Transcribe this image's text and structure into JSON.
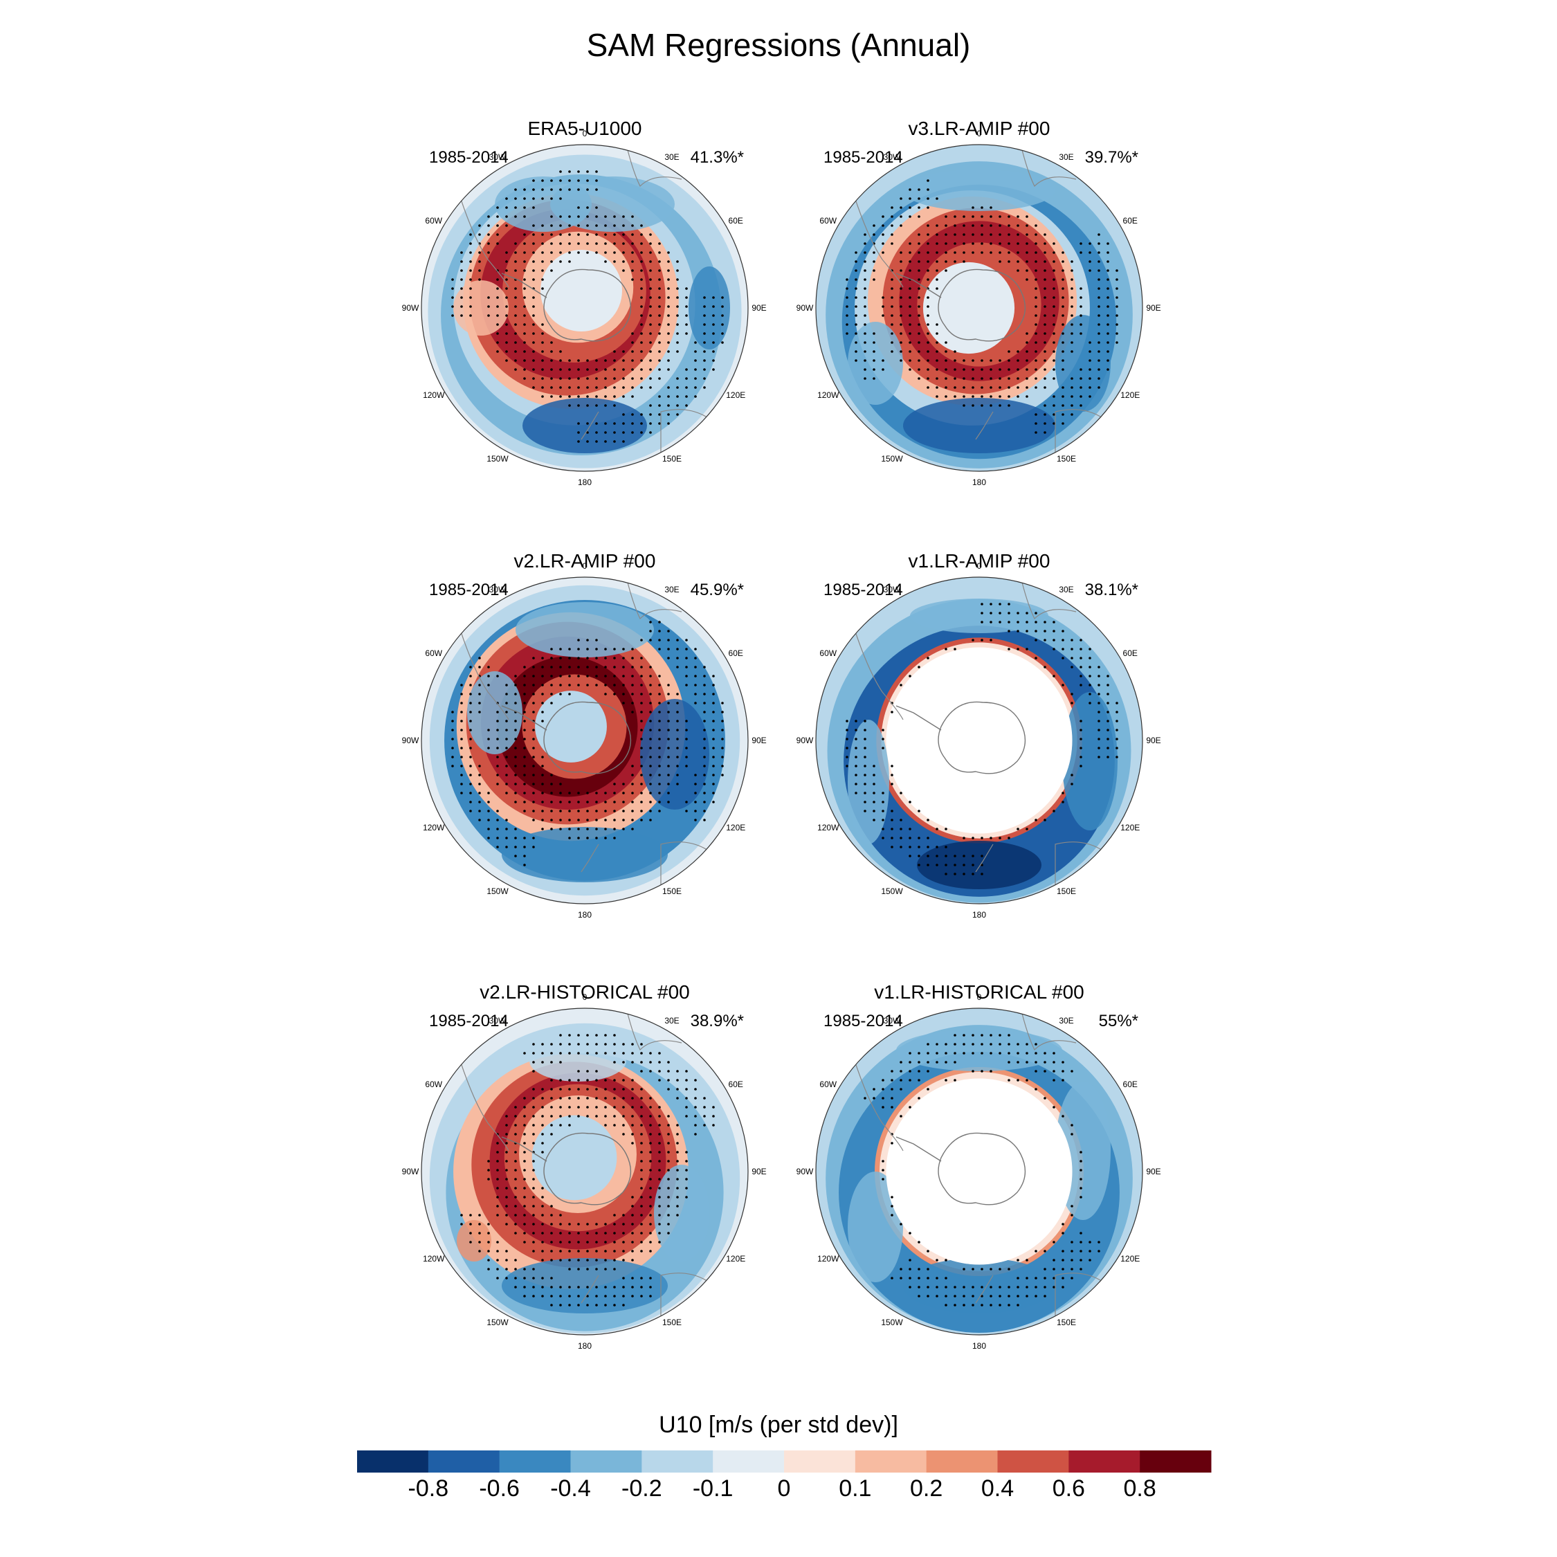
{
  "title": "SAM Regressions (Annual)",
  "panels": [
    {
      "title": "ERA5-U1000",
      "years": "1985-2014",
      "variance": "41.3%*",
      "land_masked": false,
      "pattern": "era5"
    },
    {
      "title": "v3.LR-AMIP  #00",
      "years": "1985-2014",
      "variance": "39.7%*",
      "land_masked": false,
      "pattern": "v3amip"
    },
    {
      "title": "v2.LR-AMIP  #00",
      "years": "1985-2014",
      "variance": "45.9%*",
      "land_masked": false,
      "pattern": "v2amip"
    },
    {
      "title": "v1.LR-AMIP  #00",
      "years": "1985-2014",
      "variance": "38.1%*",
      "land_masked": true,
      "pattern": "v1amip"
    },
    {
      "title": "v2.LR-HISTORICAL  #00",
      "years": "1985-2014",
      "variance": "38.9%*",
      "land_masked": false,
      "pattern": "v2hist"
    },
    {
      "title": "v1.LR-HISTORICAL  #00",
      "years": "1985-2014",
      "variance": "55%*",
      "land_masked": true,
      "pattern": "v1hist"
    }
  ],
  "longitude_labels": [
    "0",
    "30E",
    "60E",
    "90E",
    "120E",
    "150E",
    "180",
    "150W",
    "120W",
    "90W",
    "60W",
    "30W"
  ],
  "colorbar": {
    "title": "U10 [m/s (per std dev)]",
    "tick_labels": [
      "-0.8",
      "-0.6",
      "-0.4",
      "-0.2",
      "-0.1",
      "0",
      "0.1",
      "0.2",
      "0.4",
      "0.6",
      "0.8"
    ],
    "colors": [
      "#08306b",
      "#1f5fa6",
      "#3a88c0",
      "#7ab6d9",
      "#b8d7ea",
      "#e3ecf3",
      "#fbe3d8",
      "#f7bba1",
      "#ec9372",
      "#cf5344",
      "#a61b2c",
      "#67000d"
    ]
  }
}
